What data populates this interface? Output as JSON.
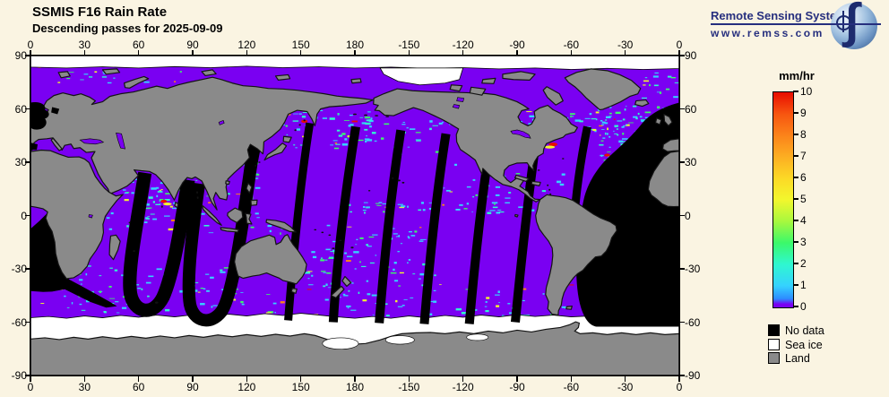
{
  "header": {
    "title": "SSMIS F16 Rain Rate",
    "subtitle": "Descending passes for 2025-09-09"
  },
  "logo": {
    "name": "Remote Sensing Systems",
    "url_text": "www.remss.com",
    "brand_color": "#262f7e",
    "integral_glyph": "∫"
  },
  "map_data": {
    "satellite": "SSMIS F16",
    "variable": "Rain Rate",
    "pass_type": "Descending",
    "date": "2025-09-09",
    "units": "mm/hr",
    "scale_range": [
      0,
      10
    ],
    "projection": "equirectangular, 0°E left edge",
    "lon_labels": [
      "0",
      "30",
      "60",
      "90",
      "120",
      "150",
      "180",
      "-150",
      "-120",
      "-90",
      "-60",
      "-30",
      "0"
    ],
    "lat_labels": [
      "90",
      "60",
      "30",
      "0",
      "-30",
      "-60",
      "-90"
    ]
  },
  "map_colors": {
    "ocean_zero_rain": "#7a00f2",
    "land": "#8a8a8a",
    "no_data": "#000000",
    "sea_ice": "#ffffff",
    "background": "#faf4e2"
  },
  "palette": {
    "cyan": "#35d2ff",
    "teal": "#2ff7d0",
    "green": "#3bf96a",
    "yellow": "#f2f72d",
    "orange": "#fb831a",
    "red": "#e80d00"
  },
  "colorbar": {
    "unit_label": "mm/hr",
    "tick_labels": [
      "10",
      "9",
      "8",
      "7",
      "6",
      "5",
      "4",
      "3",
      "2",
      "1",
      "0"
    ],
    "gradient_stops": [
      "#7a00f2 0%",
      "#7a00f2 1.5%",
      "#2d8cff 4%",
      "#35d2ff 10%",
      "#2ff7d0 20%",
      "#3bf96a 30%",
      "#a8f83e 40%",
      "#f2f72d 50%",
      "#fcd926 60%",
      "#fcae22 70%",
      "#fb831a 80%",
      "#f75510 90%",
      "#e80d00 100%"
    ]
  },
  "legend": {
    "items": [
      {
        "label": "No data",
        "color": "#000000"
      },
      {
        "label": "Sea ice",
        "color": "#ffffff"
      },
      {
        "label": "Land",
        "color": "#8a8a8a"
      }
    ]
  },
  "speckle_bands": [
    [
      315,
      352,
      28,
      62,
      90
    ],
    [
      140,
      200,
      28,
      52,
      70
    ],
    [
      200,
      250,
      36,
      56,
      35
    ],
    [
      170,
      280,
      82,
      88,
      45
    ],
    [
      160,
      225,
      95,
      128,
      55
    ],
    [
      20,
      120,
      118,
      145,
      90
    ],
    [
      130,
      300,
      126,
      147,
      80
    ],
    [
      0,
      20,
      98,
      140,
      25
    ],
    [
      50,
      100,
      68,
      86,
      40
    ],
    [
      100,
      126,
      58,
      80,
      25
    ],
    [
      150,
      178,
      108,
      136,
      25
    ],
    [
      40,
      160,
      88,
      100,
      30
    ],
    [
      296,
      330,
      30,
      46,
      30
    ],
    [
      8,
      100,
      8,
      15,
      18
    ],
    [
      226,
      300,
      60,
      80,
      25
    ],
    [
      338,
      360,
      8,
      24,
      15
    ],
    [
      344,
      360,
      28,
      40,
      12
    ],
    [
      270,
      282,
      30,
      40,
      8
    ],
    [
      55,
      75,
      75,
      95,
      18
    ]
  ]
}
